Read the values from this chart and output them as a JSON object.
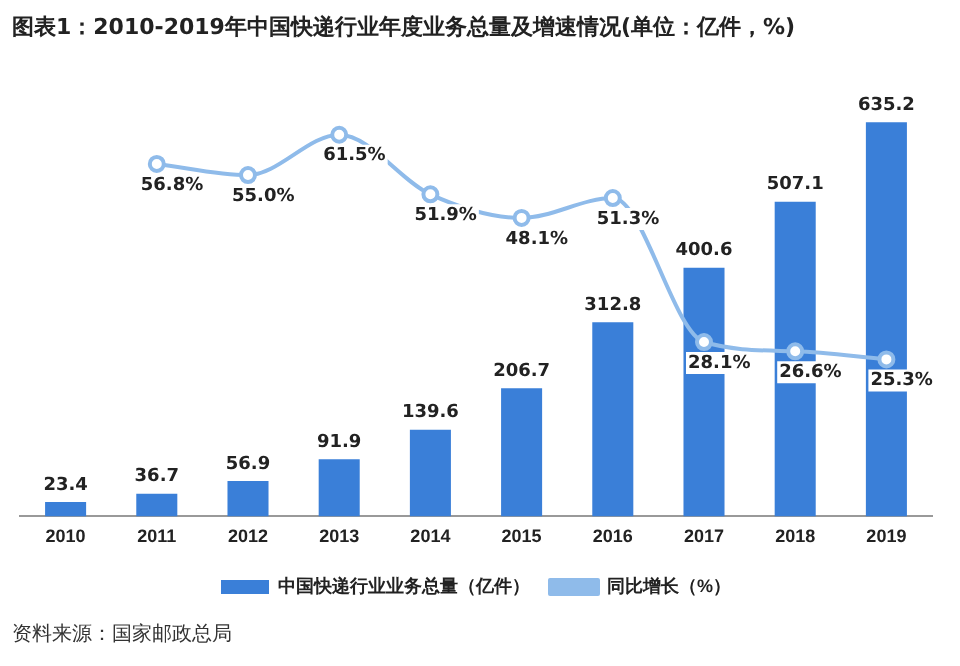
{
  "chart_data": {
    "type": "bar",
    "title": "图表1：2010-2019年中国快递行业年度业务总量及增速情况(单位：亿件，%)",
    "categories": [
      "2010",
      "2011",
      "2012",
      "2013",
      "2014",
      "2015",
      "2016",
      "2017",
      "2018",
      "2019"
    ],
    "series": [
      {
        "name": "中国快递行业业务总量（亿件）",
        "color": "#3a7fd8",
        "values": [
          23.4,
          36.7,
          56.9,
          91.9,
          139.6,
          206.7,
          312.8,
          400.6,
          507.1,
          635.2
        ]
      },
      {
        "name": "同比增长（%）",
        "type": "line",
        "axis": "y2",
        "color": "#8fbbea",
        "marker": "circle",
        "values": [
          null,
          56.8,
          55.0,
          61.5,
          51.9,
          48.1,
          51.3,
          28.1,
          26.6,
          25.3
        ],
        "value_labels": [
          null,
          "56.8%",
          "55.0%",
          "61.5%",
          "51.9%",
          "48.1%",
          "51.3%",
          "28.1%",
          "26.6%",
          "25.3%"
        ]
      }
    ],
    "tick_labels": "x",
    "data_labels": true,
    "grid": false,
    "legend": "bottom",
    "annotations": [
      "资料来源：国家邮政总局"
    ]
  }
}
